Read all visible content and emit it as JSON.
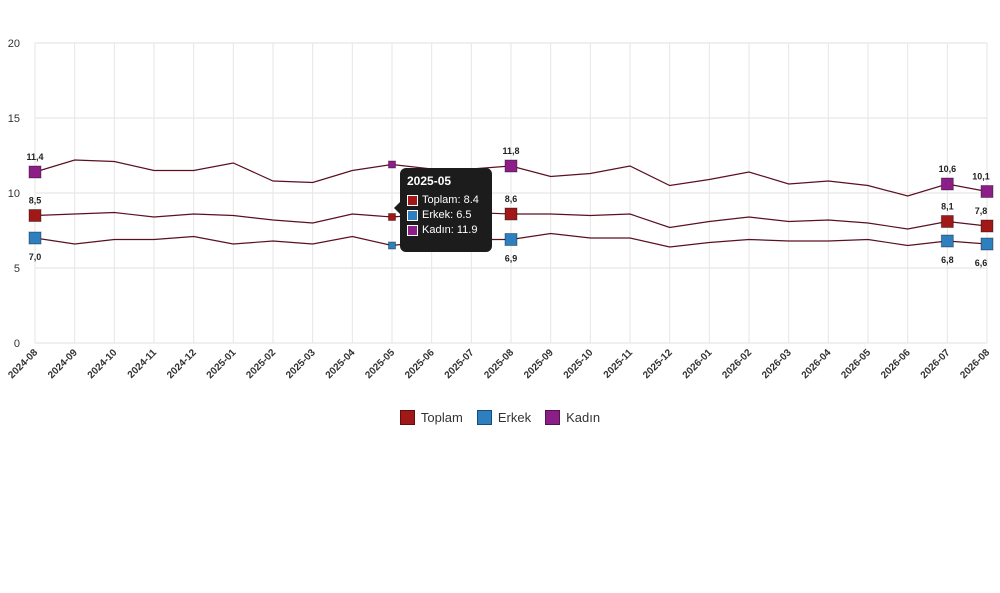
{
  "chart_data": {
    "type": "line",
    "categories": [
      "2024-08",
      "2024-09",
      "2024-10",
      "2024-11",
      "2024-12",
      "2025-01",
      "2025-02",
      "2025-03",
      "2025-04",
      "2025-05",
      "2025-06",
      "2025-07",
      "2025-08",
      "2025-09",
      "2025-10",
      "2025-11",
      "2025-12",
      "2026-01",
      "2026-02",
      "2026-03",
      "2026-04",
      "2026-05",
      "2026-06",
      "2026-07",
      "2026-08"
    ],
    "ylim": [
      0,
      20
    ],
    "yticks": [
      "0",
      "5",
      "10",
      "15",
      "20"
    ],
    "grid": true,
    "legend_position": "bottom",
    "series": [
      {
        "name": "Toplam",
        "color": "#a01818",
        "values": [
          8.5,
          8.6,
          8.7,
          8.4,
          8.6,
          8.5,
          8.2,
          8.0,
          8.6,
          8.4,
          8.6,
          8.7,
          8.6,
          8.6,
          8.5,
          8.6,
          7.7,
          8.1,
          8.4,
          8.1,
          8.2,
          8.0,
          7.6,
          8.1,
          7.8
        ]
      },
      {
        "name": "Erkek",
        "color": "#2e7fc0",
        "values": [
          7.0,
          6.6,
          6.9,
          6.9,
          7.1,
          6.6,
          6.8,
          6.6,
          7.1,
          6.5,
          6.8,
          6.9,
          6.9,
          7.3,
          7.0,
          7.0,
          6.4,
          6.7,
          6.9,
          6.8,
          6.8,
          6.9,
          6.5,
          6.8,
          6.6
        ]
      },
      {
        "name": "Kadın",
        "color": "#8c1e87",
        "values": [
          11.4,
          12.2,
          12.1,
          11.5,
          11.5,
          12.0,
          10.8,
          10.7,
          11.5,
          11.9,
          11.6,
          11.6,
          11.8,
          11.1,
          11.3,
          11.8,
          10.5,
          10.9,
          11.4,
          10.6,
          10.8,
          10.5,
          9.8,
          10.6,
          10.1
        ]
      }
    ],
    "data_labels": [
      {
        "series": 0,
        "index": 0,
        "text": "8,5"
      },
      {
        "series": 1,
        "index": 0,
        "text": "7,0"
      },
      {
        "series": 2,
        "index": 0,
        "text": "11,4"
      },
      {
        "series": 0,
        "index": 12,
        "text": "8,6"
      },
      {
        "series": 1,
        "index": 12,
        "text": "6,9"
      },
      {
        "series": 2,
        "index": 12,
        "text": "11,8"
      },
      {
        "series": 0,
        "index": 23,
        "text": "8,1"
      },
      {
        "series": 1,
        "index": 23,
        "text": "6,8"
      },
      {
        "series": 2,
        "index": 23,
        "text": "10,6"
      },
      {
        "series": 0,
        "index": 24,
        "text": "7,8"
      },
      {
        "series": 1,
        "index": 24,
        "text": "6,6"
      },
      {
        "series": 2,
        "index": 24,
        "text": "10,1"
      }
    ]
  },
  "tooltip": {
    "title": "2025-05",
    "rows": [
      {
        "text": "Toplam: 8.4",
        "color": "#a01818"
      },
      {
        "text": "Erkek: 6.5",
        "color": "#2e7fc0"
      },
      {
        "text": "Kadın: 11.9",
        "color": "#8c1e87"
      }
    ]
  },
  "legend": [
    {
      "label": "Toplam",
      "color": "#a01818"
    },
    {
      "label": "Erkek",
      "color": "#2e7fc0"
    },
    {
      "label": "Kadın",
      "color": "#8c1e87"
    }
  ]
}
